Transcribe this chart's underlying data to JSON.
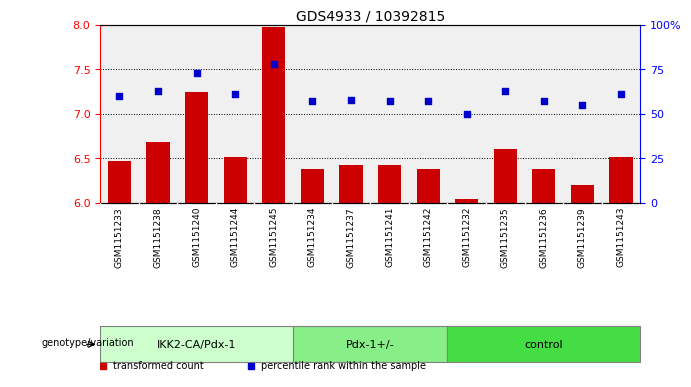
{
  "title": "GDS4933 / 10392815",
  "samples": [
    "GSM1151233",
    "GSM1151238",
    "GSM1151240",
    "GSM1151244",
    "GSM1151245",
    "GSM1151234",
    "GSM1151237",
    "GSM1151241",
    "GSM1151242",
    "GSM1151232",
    "GSM1151235",
    "GSM1151236",
    "GSM1151239",
    "GSM1151243"
  ],
  "bar_values": [
    6.47,
    6.68,
    7.25,
    6.52,
    7.98,
    6.38,
    6.42,
    6.43,
    6.38,
    6.04,
    6.6,
    6.38,
    6.2,
    6.52
  ],
  "dot_values": [
    60,
    63,
    73,
    61,
    78,
    57,
    58,
    57,
    57,
    50,
    63,
    57,
    55,
    61
  ],
  "groups": [
    {
      "label": "IKK2-CA/Pdx-1",
      "start": 0,
      "end": 4,
      "color": "#ccffcc"
    },
    {
      "label": "Pdx-1+/-",
      "start": 5,
      "end": 8,
      "color": "#88ee88"
    },
    {
      "label": "control",
      "start": 9,
      "end": 13,
      "color": "#44dd44"
    }
  ],
  "bar_color": "#cc0000",
  "dot_color": "#0000cc",
  "ylim_left": [
    6.0,
    8.0
  ],
  "ylim_right": [
    0,
    100
  ],
  "yticks_left": [
    6.0,
    6.5,
    7.0,
    7.5,
    8.0
  ],
  "yticks_right": [
    0,
    25,
    50,
    75,
    100
  ],
  "ytick_right_labels": [
    "0",
    "25",
    "50",
    "75",
    "100%"
  ],
  "grid_values": [
    6.5,
    7.0,
    7.5
  ],
  "bar_width": 0.6,
  "plot_bg_color": "#f0f0f0",
  "xlabel_bg_color": "#d0d0d0",
  "legend_items": [
    {
      "label": "transformed count",
      "color": "#cc0000"
    },
    {
      "label": "percentile rank within the sample",
      "color": "#0000cc"
    }
  ],
  "genotype_label": "genotype/variation"
}
